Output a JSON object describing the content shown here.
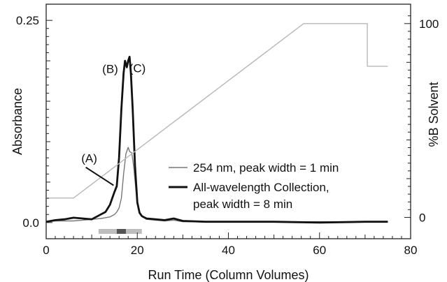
{
  "chart_data": {
    "type": "line",
    "title": "",
    "xlabel": "Run Time (Column Volumes)",
    "ylabel": "Absorbance",
    "y2label": "%B Solvent",
    "xlim": [
      0,
      80
    ],
    "ylim": [
      -0.02,
      0.27
    ],
    "y2lim": [
      -11,
      110
    ],
    "x_ticks": [
      0,
      20,
      40,
      60,
      80
    ],
    "x_tick_labels": [
      "0",
      "20",
      "40",
      "60",
      "80"
    ],
    "y_ticks": [
      0.0,
      0.25
    ],
    "y_tick_labels": [
      "0.0",
      "0.25"
    ],
    "y2_ticks": [
      0,
      100
    ],
    "y2_tick_labels": [
      "0",
      "100"
    ],
    "grid": false,
    "legend_position": "center-right",
    "annotations": [
      {
        "text": "(A)",
        "x": 13.3,
        "y": 0.064
      },
      {
        "text": "(B)",
        "x": 16.2,
        "y": 0.19
      },
      {
        "text": "(C)",
        "x": 18.5,
        "y": 0.186
      }
    ],
    "collection_bar": {
      "x_start": 11.5,
      "x_end": 21,
      "dark_start": 15.5,
      "dark_end": 17.5
    },
    "series": [
      {
        "name": "254 nm, peak width = 1 min",
        "color": "#777777",
        "axis": "left",
        "points": [
          [
            0,
            0.001
          ],
          [
            2,
            0.002
          ],
          [
            4,
            0.002
          ],
          [
            6,
            0.002
          ],
          [
            8,
            0.003
          ],
          [
            10,
            0.004
          ],
          [
            12,
            0.005
          ],
          [
            13,
            0.006
          ],
          [
            14,
            0.007
          ],
          [
            15,
            0.01
          ],
          [
            15.5,
            0.013
          ],
          [
            16,
            0.018
          ],
          [
            16.5,
            0.03
          ],
          [
            17,
            0.06
          ],
          [
            17.5,
            0.085
          ],
          [
            18,
            0.093
          ],
          [
            18.3,
            0.088
          ],
          [
            18.8,
            0.086
          ],
          [
            19.2,
            0.07
          ],
          [
            19.8,
            0.035
          ],
          [
            20.3,
            0.015
          ],
          [
            21,
            0.008
          ],
          [
            22,
            0.004
          ],
          [
            24,
            0.003
          ],
          [
            26,
            0.002
          ],
          [
            28,
            0.003
          ],
          [
            30,
            0.001
          ],
          [
            35,
            0.001
          ],
          [
            45,
            0.001
          ],
          [
            60,
            0.001
          ],
          [
            75,
            0.001
          ]
        ]
      },
      {
        "name": "All-wavelength Collection,\npeak width = 8 min",
        "color": "#111111",
        "axis": "left",
        "points": [
          [
            0,
            0.001
          ],
          [
            2,
            0.003
          ],
          [
            4,
            0.004
          ],
          [
            6,
            0.006
          ],
          [
            8,
            0.005
          ],
          [
            10,
            0.004
          ],
          [
            11,
            0.007
          ],
          [
            12,
            0.01
          ],
          [
            13,
            0.013
          ],
          [
            14,
            0.022
          ],
          [
            14.5,
            0.03
          ],
          [
            15,
            0.038
          ],
          [
            15.5,
            0.045
          ],
          [
            16,
            0.08
          ],
          [
            16.5,
            0.14
          ],
          [
            17,
            0.185
          ],
          [
            17.3,
            0.2
          ],
          [
            17.7,
            0.192
          ],
          [
            18.0,
            0.2
          ],
          [
            18.3,
            0.205
          ],
          [
            18.6,
            0.185
          ],
          [
            19,
            0.14
          ],
          [
            19.5,
            0.07
          ],
          [
            20,
            0.025
          ],
          [
            20.5,
            0.012
          ],
          [
            21,
            0.008
          ],
          [
            22,
            0.005
          ],
          [
            24,
            0.004
          ],
          [
            26,
            0.003
          ],
          [
            28,
            0.005
          ],
          [
            30,
            0.002
          ],
          [
            35,
            0.001
          ],
          [
            40,
            0.001
          ],
          [
            50,
            0.001
          ],
          [
            60,
            0.0
          ],
          [
            70,
            0.001
          ],
          [
            75,
            0.001
          ]
        ]
      },
      {
        "name": "%B Solvent",
        "color": "#b8b8b8",
        "axis": "right",
        "points": [
          [
            0,
            10
          ],
          [
            6,
            10
          ],
          [
            56.5,
            100
          ],
          [
            70.5,
            100
          ],
          [
            70.5,
            78
          ],
          [
            75,
            78
          ]
        ]
      }
    ]
  }
}
